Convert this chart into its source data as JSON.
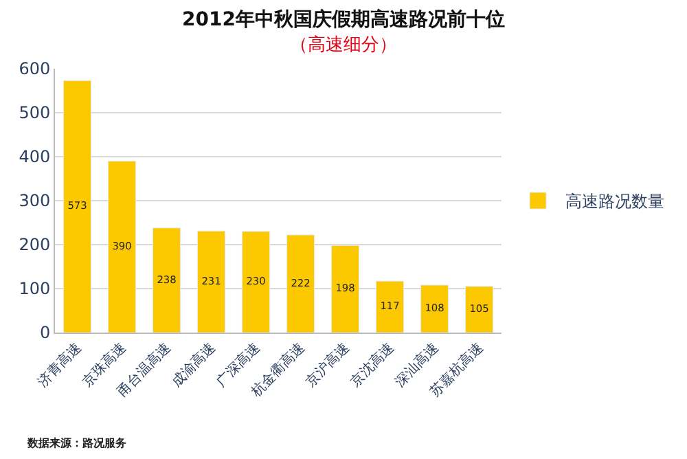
{
  "chart_data": {
    "type": "bar",
    "title": "2012年中秋国庆假期高速路况前十位",
    "subtitle": "（高速细分）",
    "categories": [
      "济青高速",
      "京珠高速",
      "甬台温高速",
      "成渝高速",
      "广深高速",
      "杭金衢高速",
      "京沪高速",
      "京沈高速",
      "深汕高速",
      "苏嘉杭高速"
    ],
    "series": [
      {
        "name": "高速路况数量",
        "color": "#fcc800",
        "values": [
          573,
          390,
          238,
          231,
          230,
          222,
          198,
          117,
          108,
          105
        ]
      }
    ],
    "ylim": [
      0,
      600
    ],
    "yticks": [
      0,
      100,
      200,
      300,
      400,
      500,
      600
    ],
    "grid": "y",
    "legend": "right",
    "data_labels": true,
    "annotations": [
      "数据来源：路况服务"
    ]
  }
}
